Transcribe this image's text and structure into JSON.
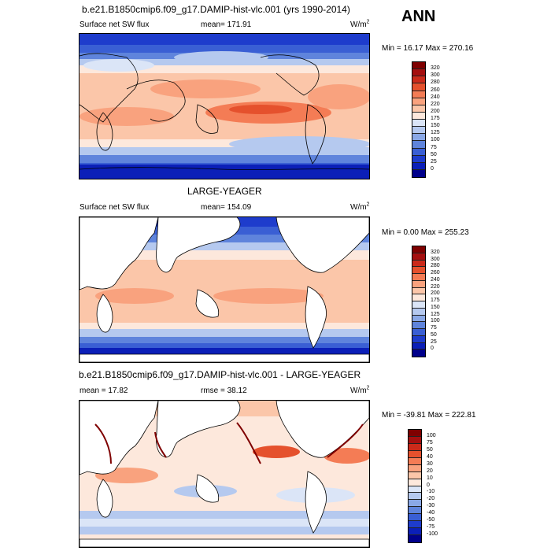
{
  "header": {
    "title": "b.e21.B1850cmip6.f09_g17.DAMIP-hist-vlc.001 (yrs 1990-2014)",
    "season": "ANN"
  },
  "panels": [
    {
      "id": "model",
      "variable": "Surface net SW flux",
      "stat": "mean= 171.91",
      "units_base": "W/m",
      "units_exp": "2",
      "minmax": "Min =  16.17 Max = 270.16",
      "land_masked": false,
      "colorbar": {
        "levels": [
          "320",
          "300",
          "280",
          "260",
          "240",
          "220",
          "200",
          "175",
          "150",
          "125",
          "100",
          "75",
          "50",
          "25",
          "0"
        ],
        "colors": [
          "#7f0000",
          "#a50f0f",
          "#cb2a1a",
          "#e5512d",
          "#f47c55",
          "#f9a27e",
          "#fbc6a9",
          "#fde8dc",
          "#dbe5f7",
          "#b5c9ef",
          "#8aa8e6",
          "#5f84dc",
          "#3a5fd4",
          "#1e3ccc",
          "#0b1fb8",
          "#00008b"
        ]
      }
    },
    {
      "id": "obs",
      "subtitle": "LARGE-YEAGER",
      "variable": "Surface net SW flux",
      "stat": "mean= 154.09",
      "units_base": "W/m",
      "units_exp": "2",
      "minmax": "Min =   0.00 Max = 255.23",
      "land_masked": true,
      "colorbar": {
        "levels": [
          "320",
          "300",
          "280",
          "260",
          "240",
          "220",
          "200",
          "175",
          "150",
          "125",
          "100",
          "75",
          "50",
          "25",
          "0"
        ],
        "colors": [
          "#7f0000",
          "#a50f0f",
          "#cb2a1a",
          "#e5512d",
          "#f47c55",
          "#f9a27e",
          "#fbc6a9",
          "#fde8dc",
          "#dbe5f7",
          "#b5c9ef",
          "#8aa8e6",
          "#5f84dc",
          "#3a5fd4",
          "#1e3ccc",
          "#0b1fb8",
          "#00008b"
        ]
      }
    },
    {
      "id": "diff",
      "subtitle": "b.e21.B1850cmip6.f09_g17.DAMIP-hist-vlc.001 - LARGE-YEAGER",
      "stat_left": "mean =  17.82",
      "stat": "rmse =  38.12",
      "units_base": "W/m",
      "units_exp": "2",
      "minmax": "Min = -39.81 Max = 222.81",
      "land_masked": true,
      "colorbar": {
        "levels": [
          "100",
          "75",
          "50",
          "40",
          "30",
          "20",
          "10",
          "0",
          "-10",
          "-20",
          "-30",
          "-40",
          "-50",
          "-75",
          "-100"
        ],
        "colors": [
          "#7f0000",
          "#a50f0f",
          "#cb2a1a",
          "#e5512d",
          "#f47c55",
          "#f9a27e",
          "#fbc6a9",
          "#fde8dc",
          "#dbe5f7",
          "#b5c9ef",
          "#8aa8e6",
          "#5f84dc",
          "#3a5fd4",
          "#1e3ccc",
          "#0b1fb8",
          "#00008b"
        ]
      }
    }
  ]
}
